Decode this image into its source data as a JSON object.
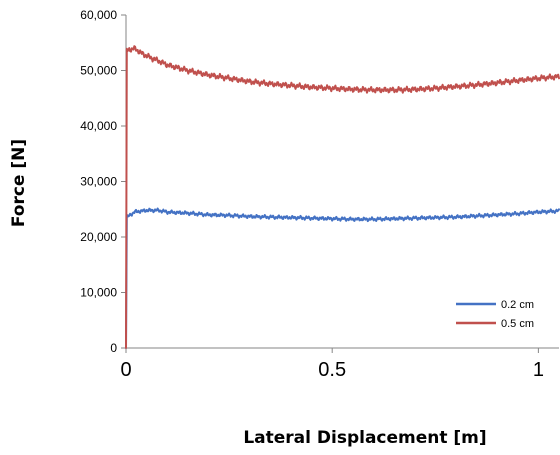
{
  "chart_data": {
    "type": "line",
    "title": "",
    "xlabel": "Lateral Displacement [m]",
    "ylabel": "Force [N]",
    "xlim": [
      0,
      1.05
    ],
    "ylim": [
      0,
      60000
    ],
    "x_ticks": [
      0,
      0.5,
      1
    ],
    "x_tick_labels": [
      "0",
      "0.5",
      "1"
    ],
    "y_ticks": [
      0,
      10000,
      20000,
      30000,
      40000,
      50000,
      60000
    ],
    "y_tick_labels": [
      "0",
      "10,000",
      "20,000",
      "30,000",
      "40,000",
      "50,000",
      "60,000"
    ],
    "grid": false,
    "legend_position": "bottom-right",
    "series": [
      {
        "name": "0.2 cm",
        "color": "#4472C4",
        "x": [
          0,
          0.002,
          0.02,
          0.05,
          0.08,
          0.1,
          0.15,
          0.2,
          0.25,
          0.3,
          0.35,
          0.4,
          0.45,
          0.5,
          0.55,
          0.6,
          0.65,
          0.7,
          0.75,
          0.8,
          0.85,
          0.9,
          0.95,
          1.0,
          1.05
        ],
        "y": [
          0,
          23500,
          24500,
          24800,
          24800,
          24500,
          24300,
          24000,
          23900,
          23700,
          23600,
          23500,
          23400,
          23300,
          23200,
          23200,
          23300,
          23400,
          23500,
          23600,
          23800,
          24000,
          24200,
          24500,
          24700
        ]
      },
      {
        "name": "0.5 cm",
        "color": "#C0504D",
        "x": [
          0,
          0.002,
          0.01,
          0.02,
          0.04,
          0.06,
          0.08,
          0.1,
          0.15,
          0.2,
          0.25,
          0.3,
          0.35,
          0.4,
          0.45,
          0.5,
          0.55,
          0.6,
          0.65,
          0.7,
          0.75,
          0.8,
          0.85,
          0.9,
          0.95,
          1.0,
          1.05
        ],
        "y": [
          0,
          53500,
          53800,
          54000,
          53000,
          52300,
          51700,
          51000,
          50000,
          49200,
          48600,
          48000,
          47600,
          47300,
          47000,
          46800,
          46600,
          46500,
          46500,
          46600,
          46800,
          47100,
          47400,
          47800,
          48200,
          48600,
          48900
        ]
      }
    ]
  }
}
